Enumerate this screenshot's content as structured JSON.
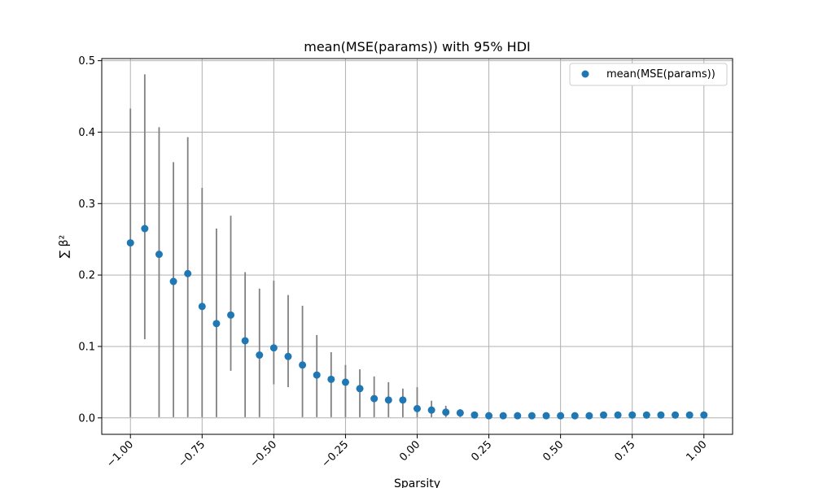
{
  "chart_data": {
    "type": "scatter",
    "title": "mean(MSE(params)) with 95% HDI",
    "xlabel": "Sparsity",
    "ylabel": "∑ β²",
    "xlim": [
      -1.1,
      1.1
    ],
    "ylim": [
      -0.023,
      0.503
    ],
    "xticks": [
      -1.0,
      -0.75,
      -0.5,
      -0.25,
      0.0,
      0.25,
      0.5,
      0.75,
      1.0
    ],
    "xtick_labels": [
      "−1.00",
      "−0.75",
      "−0.50",
      "−0.25",
      "0.00",
      "0.25",
      "0.50",
      "0.75",
      "1.00"
    ],
    "yticks": [
      0.0,
      0.1,
      0.2,
      0.3,
      0.4,
      0.5
    ],
    "ytick_labels": [
      "0.0",
      "0.1",
      "0.2",
      "0.3",
      "0.4",
      "0.5"
    ],
    "grid": true,
    "legend_position": "top-right",
    "series": [
      {
        "name": "mean(MSE(params))",
        "color": "#1f77b4",
        "errorbar_color": "#808080",
        "x": [
          -1.0,
          -0.95,
          -0.9,
          -0.85,
          -0.8,
          -0.75,
          -0.7,
          -0.65,
          -0.6,
          -0.55,
          -0.5,
          -0.45,
          -0.4,
          -0.35,
          -0.3,
          -0.25,
          -0.2,
          -0.15,
          -0.1,
          -0.05,
          0.0,
          0.05,
          0.1,
          0.15,
          0.2,
          0.25,
          0.3,
          0.35,
          0.4,
          0.45,
          0.5,
          0.55,
          0.6,
          0.65,
          0.7,
          0.75,
          0.8,
          0.85,
          0.9,
          0.95,
          1.0
        ],
        "y": [
          0.245,
          0.265,
          0.229,
          0.191,
          0.202,
          0.156,
          0.132,
          0.144,
          0.108,
          0.088,
          0.098,
          0.086,
          0.074,
          0.06,
          0.054,
          0.05,
          0.041,
          0.027,
          0.025,
          0.025,
          0.013,
          0.011,
          0.008,
          0.007,
          0.004,
          0.003,
          0.003,
          0.003,
          0.003,
          0.003,
          0.003,
          0.003,
          0.003,
          0.004,
          0.004,
          0.004,
          0.004,
          0.004,
          0.004,
          0.004,
          0.004
        ],
        "hdi_low": [
          0.001,
          0.11,
          0.001,
          0.001,
          0.001,
          0.001,
          0.001,
          0.066,
          0.001,
          0.001,
          0.047,
          0.043,
          0.001,
          0.001,
          0.001,
          0.001,
          0.001,
          0.001,
          0.001,
          0.001,
          0.001,
          0.001,
          0.001,
          0.001,
          0.001,
          0.001,
          0.001,
          0.001,
          0.001,
          0.001,
          0.001,
          0.001,
          0.001,
          0.001,
          0.001,
          0.001,
          0.001,
          0.001,
          0.001,
          0.001,
          0.001
        ],
        "hdi_high": [
          0.433,
          0.481,
          0.407,
          0.358,
          0.393,
          0.322,
          0.265,
          0.283,
          0.204,
          0.181,
          0.192,
          0.172,
          0.157,
          0.116,
          0.092,
          0.074,
          0.068,
          0.058,
          0.05,
          0.041,
          0.043,
          0.024,
          0.017,
          0.012,
          0.007,
          0.006,
          0.005,
          0.005,
          0.005,
          0.005,
          0.005,
          0.005,
          0.005,
          0.007,
          0.007,
          0.007,
          0.007,
          0.007,
          0.007,
          0.007,
          0.007
        ]
      }
    ]
  }
}
